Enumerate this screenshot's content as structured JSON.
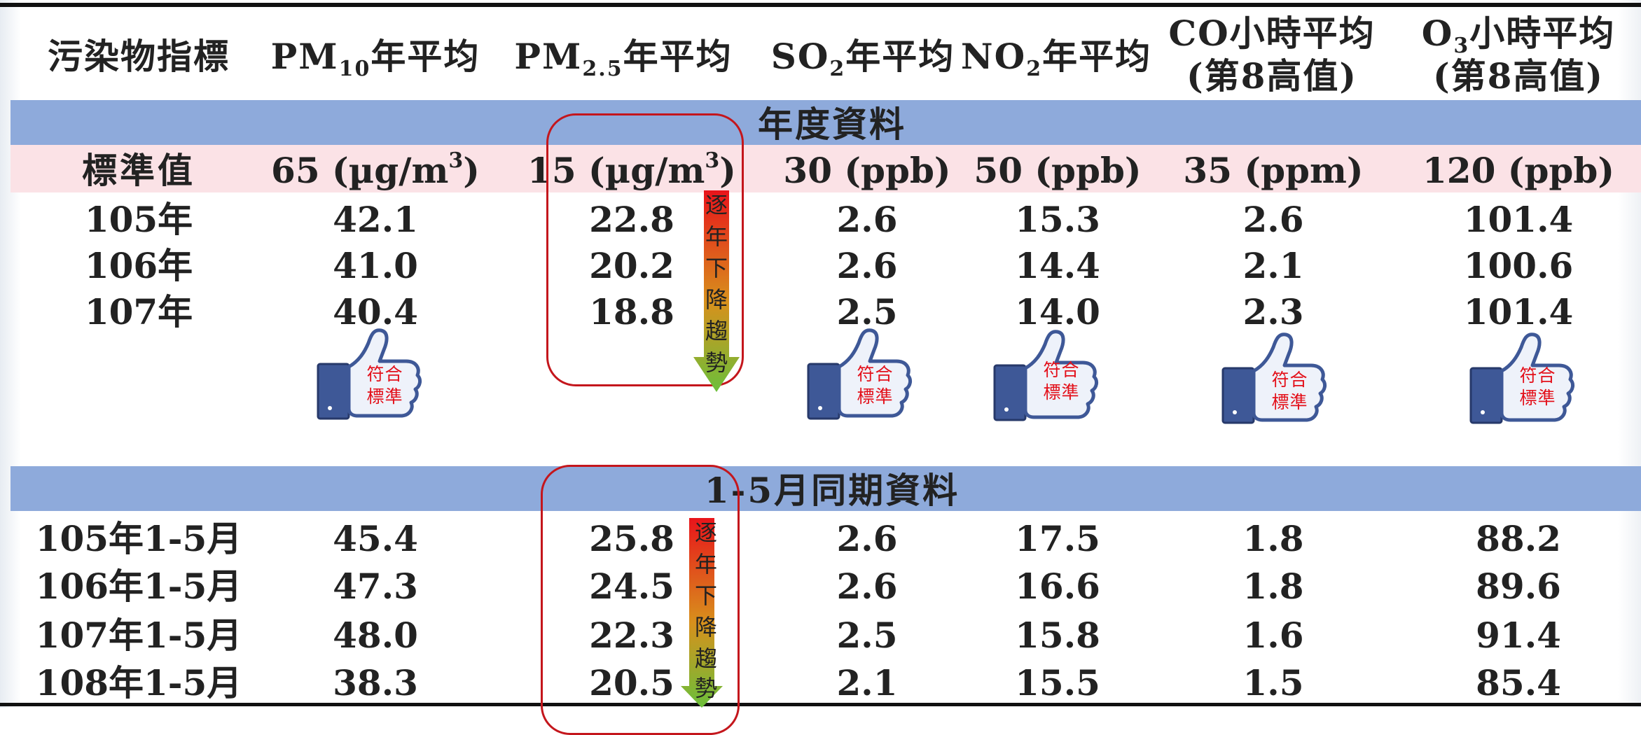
{
  "header": {
    "indicator": "污染物指標",
    "pm10": {
      "prefix": "PM",
      "sub": "10",
      "suffix": "年平均"
    },
    "pm25": {
      "prefix": "PM",
      "sub": "2.5",
      "suffix": "年平均"
    },
    "so2": {
      "prefix": "SO",
      "sub": "2",
      "suffix": "年平均"
    },
    "no2": {
      "prefix": "NO",
      "sub": "2",
      "suffix": "年平均"
    },
    "co": {
      "line1": "CO小時平均",
      "line2": "(第8高值)"
    },
    "o3": {
      "prefix": "O",
      "sub": "3",
      "suffix": "小時平均",
      "line2": "(第8高值)"
    }
  },
  "annual": {
    "title": "年度資料",
    "standard": {
      "label": "標準值",
      "pm10": {
        "value": "65 (µg/m",
        "sup": "3",
        "close": ")"
      },
      "pm25": {
        "value": "15 (µg/m",
        "sup": "3",
        "close": ")"
      },
      "so2": "30 (ppb)",
      "no2": "50 (ppb)",
      "co": "35 (ppm)",
      "o3": "120 (ppb)"
    },
    "rows": [
      {
        "year": "105年",
        "pm10": "42.1",
        "pm25": "22.8",
        "so2": "2.6",
        "no2": "15.3",
        "co": "2.6",
        "o3": "101.4"
      },
      {
        "year": "106年",
        "pm10": "41.0",
        "pm25": "20.2",
        "so2": "2.6",
        "no2": "14.4",
        "co": "2.1",
        "o3": "100.6"
      },
      {
        "year": "107年",
        "pm10": "40.4",
        "pm25": "18.8",
        "so2": "2.5",
        "no2": "14.0",
        "co": "2.3",
        "o3": "101.4"
      }
    ],
    "trend_chars": [
      "逐",
      "年",
      "下",
      "降",
      "趨",
      "勢"
    ]
  },
  "period": {
    "title": "1-5月同期資料",
    "rows": [
      {
        "period": "105年1-5月",
        "pm10": "45.4",
        "pm25": "25.8",
        "so2": "2.6",
        "no2": "17.5",
        "co": "1.8",
        "o3": "88.2"
      },
      {
        "period": "106年1-5月",
        "pm10": "47.3",
        "pm25": "24.5",
        "so2": "2.6",
        "no2": "16.6",
        "co": "1.8",
        "o3": "89.6"
      },
      {
        "period": "107年1-5月",
        "pm10": "48.0",
        "pm25": "22.3",
        "so2": "2.5",
        "no2": "15.8",
        "co": "1.6",
        "o3": "91.4"
      },
      {
        "period": "108年1-5月",
        "pm10": "38.3",
        "pm25": "20.5",
        "so2": "2.1",
        "no2": "15.5",
        "co": "1.5",
        "o3": "85.4"
      }
    ],
    "trend_chars": [
      "逐",
      "年",
      "下",
      "降",
      "趨",
      "勢"
    ]
  },
  "badge": {
    "line1": "符合",
    "line2": "標準",
    "icon": "thumbs-up-icon"
  },
  "colors": {
    "header_band": "#8eaadb",
    "standard_band": "#fbe2e6",
    "highlight_box": "#c4161c",
    "arrow_top": "#e8141b",
    "arrow_bottom": "#6bbf3a",
    "badge_text": "#e3101a"
  }
}
